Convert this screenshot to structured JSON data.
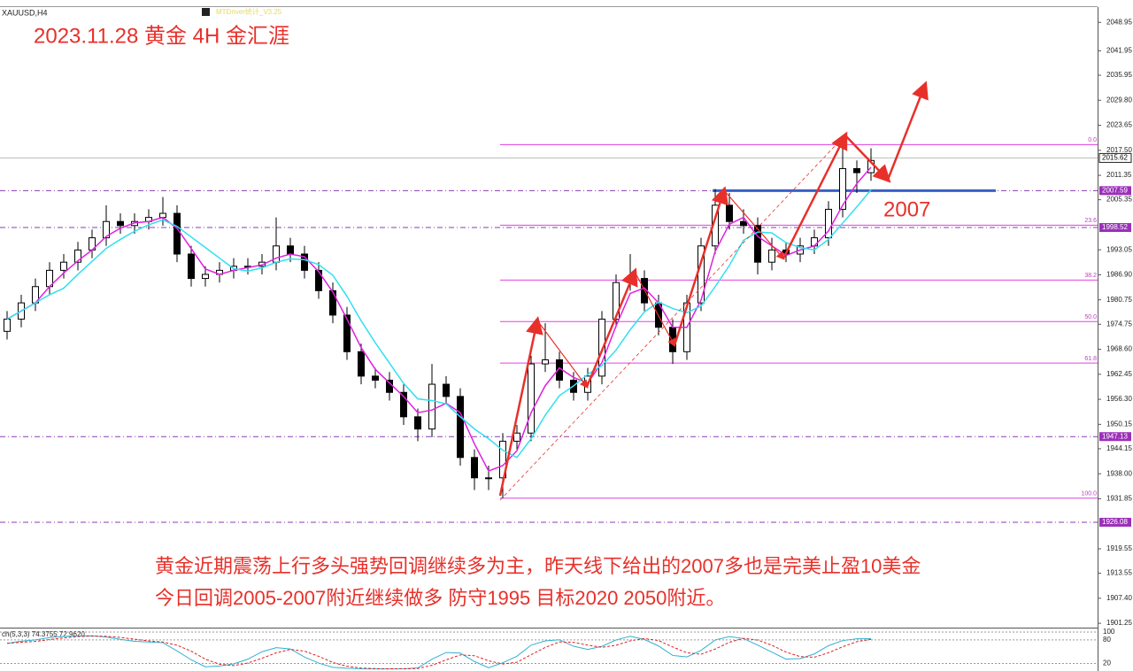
{
  "chart_data": {
    "type": "candlestick",
    "symbol": "XAUUSD,H4",
    "indicator": "MTDriver统计_V3.25",
    "title": "2023.11.28 黄金 4H 金汇涯",
    "annotation": "2007",
    "notes": [
      "黄金近期震荡上行多头强势回调继续多为主，昨天线下给出的2007多也是完美止盈10美金",
      "今日回调2005-2007附近继续做多 防守1995 目标2020 2050附近。"
    ],
    "open": [
      1973,
      1976,
      1980,
      1984,
      1988,
      1990,
      1993,
      1996,
      2000,
      1999,
      2000,
      2001,
      2002,
      1992,
      1986,
      1987,
      1988,
      1989,
      1989,
      1990,
      1994,
      1992,
      1988,
      1983,
      1977,
      1968,
      1962,
      1961,
      1958,
      1952,
      1949,
      1960,
      1957,
      1942,
      1937,
      1937,
      1946,
      1948,
      1965,
      1966,
      1961,
      1958,
      1962,
      1976,
      1985,
      1986,
      1980,
      1974,
      1968,
      1980,
      1994,
      2004,
      2000,
      1999,
      1990,
      1993,
      1992,
      1994,
      1996,
      2003,
      2013,
      2012
    ],
    "high": [
      1978,
      1982,
      1986,
      1990,
      1992,
      1995,
      1998,
      2004,
      2002,
      2002,
      2003,
      2006,
      2004,
      1994,
      1989,
      1990,
      1991,
      1991,
      1992,
      2001,
      1996,
      1994,
      1990,
      1985,
      1979,
      1970,
      1964,
      1963,
      1960,
      1954,
      1965,
      1962,
      1959,
      1944,
      1940,
      1948,
      1950,
      1967,
      1975,
      1968,
      1963,
      1964,
      1978,
      1987,
      1992,
      1988,
      1982,
      1976,
      1982,
      1996,
      2008,
      2007,
      2003,
      2001,
      1996,
      1995,
      1996,
      1998,
      2005,
      2018,
      2015,
      2018
    ],
    "low": [
      1971,
      1974,
      1978,
      1982,
      1986,
      1988,
      1991,
      1994,
      1997,
      1997,
      1998,
      1999,
      1990,
      1984,
      1984,
      1985,
      1986,
      1987,
      1987,
      1988,
      1990,
      1986,
      1981,
      1975,
      1966,
      1960,
      1959,
      1956,
      1950,
      1946,
      1947,
      1955,
      1940,
      1934,
      1934,
      1932,
      1944,
      1946,
      1963,
      1959,
      1956,
      1956,
      1960,
      1974,
      1983,
      1978,
      1972,
      1965,
      1966,
      1978,
      1992,
      1998,
      1997,
      1987,
      1988,
      1990,
      1990,
      1992,
      1994,
      2001,
      2007,
      2010
    ],
    "close": [
      1976,
      1980,
      1984,
      1988,
      1990,
      1993,
      1996,
      2000,
      1999,
      2000,
      2001,
      2002,
      1992,
      1986,
      1987,
      1988,
      1989,
      1989,
      1990,
      1994,
      1992,
      1988,
      1983,
      1977,
      1968,
      1962,
      1961,
      1958,
      1952,
      1949,
      1960,
      1957,
      1942,
      1937,
      1937,
      1946,
      1948,
      1965,
      1966,
      1961,
      1958,
      1962,
      1976,
      1985,
      1986,
      1980,
      1974,
      1968,
      1980,
      1994,
      2004,
      2000,
      1999,
      1990,
      1993,
      1992,
      1994,
      1996,
      2003,
      2013,
      2012,
      2015
    ],
    "ylim": [
      1900.4,
      2052.7
    ],
    "yticks": [
      2048.95,
      2041.95,
      2035.95,
      {
        "value": 2029.8,
        "label": "2029.80"
      },
      2023.65,
      {
        "value": 2017.5,
        "label": "2017.50"
      },
      2011.35,
      2005.35,
      1993.05,
      {
        "value": 1986.9,
        "label": "1986.90"
      },
      1980.75,
      1974.75,
      {
        "value": 1968.6,
        "label": "1968.60"
      },
      1962.45,
      {
        "value": 1956.3,
        "label": "1956.30"
      },
      1950.15,
      1944.15,
      {
        "value": 1938,
        "label": "1938.00"
      },
      1931.85,
      1919.55,
      1913.55,
      {
        "value": 1907.4,
        "label": "1907.40"
      },
      1901.25
    ],
    "price_line": 2015.62,
    "levels": [
      2007.59,
      1998.52,
      1947.13,
      1926.08
    ],
    "fib": [
      {
        "value": 2018.9,
        "label": "0.0"
      },
      {
        "value": 1999.1,
        "label": "23.6"
      },
      {
        "value": 1985.6,
        "label": "38.2"
      },
      {
        "value": 1975.4,
        "label": "50.0"
      },
      {
        "value": 1965.2,
        "label": "61.8"
      },
      {
        "value": 1932.0,
        "label": "100.0"
      }
    ],
    "stoch_label": "ch(5,3,3) 74.3755 72.9620",
    "stoch_ylim": [
      1,
      109
    ],
    "stoch_yticks": [
      100,
      80,
      20
    ]
  }
}
